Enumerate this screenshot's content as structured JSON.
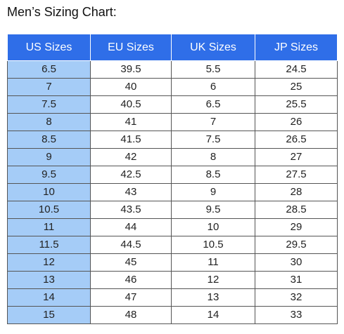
{
  "title": "Men’s Sizing Chart:",
  "table": {
    "headers": [
      "US Sizes",
      "EU Sizes",
      "UK Sizes",
      "JP Sizes"
    ],
    "rows": [
      [
        "6.5",
        "39.5",
        "5.5",
        "24.5"
      ],
      [
        "7",
        "40",
        "6",
        "25"
      ],
      [
        "7.5",
        "40.5",
        "6.5",
        "25.5"
      ],
      [
        "8",
        "41",
        "7",
        "26"
      ],
      [
        "8.5",
        "41.5",
        "7.5",
        "26.5"
      ],
      [
        "9",
        "42",
        "8",
        "27"
      ],
      [
        "9.5",
        "42.5",
        "8.5",
        "27.5"
      ],
      [
        "10",
        "43",
        "9",
        "28"
      ],
      [
        "10.5",
        "43.5",
        "9.5",
        "28.5"
      ],
      [
        "11",
        "44",
        "10",
        "29"
      ],
      [
        "11.5",
        "44.5",
        "10.5",
        "29.5"
      ],
      [
        "12",
        "45",
        "11",
        "30"
      ],
      [
        "13",
        "46",
        "12",
        "31"
      ],
      [
        "14",
        "47",
        "13",
        "32"
      ],
      [
        "15",
        "48",
        "14",
        "33"
      ]
    ]
  },
  "colors": {
    "header_bg": "#2f6ee8",
    "header_text": "#ffffff",
    "us_column_bg": "#a5ccf7",
    "border": "#555555"
  }
}
